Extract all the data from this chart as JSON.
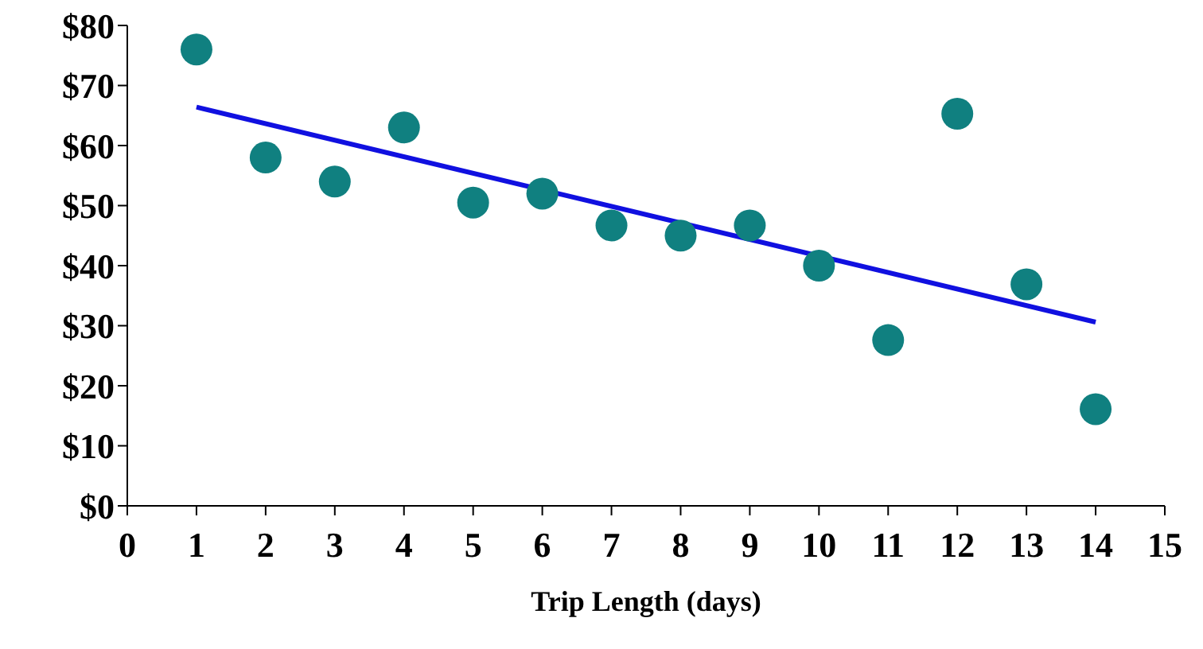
{
  "chart_data": {
    "type": "scatter",
    "xlabel": "Trip Length (days)",
    "grid": false,
    "legend": false,
    "x": [
      1,
      2,
      3,
      4,
      5,
      6,
      7,
      8,
      9,
      10,
      11,
      12,
      13,
      14
    ],
    "series": [
      {
        "marker": "circle",
        "color": "#108080",
        "values": [
          76,
          58,
          54,
          63,
          50.5,
          52,
          46.7,
          45,
          46.7,
          40,
          27.6,
          65.3,
          36.9,
          16.1
        ]
      },
      {
        "type": "line",
        "color": "#1010e0",
        "x": [
          1,
          14
        ],
        "values": [
          66.4,
          30.6
        ]
      }
    ],
    "xlim": [
      0,
      15
    ],
    "xticks": [
      0,
      1,
      2,
      3,
      4,
      5,
      6,
      7,
      8,
      9,
      10,
      11,
      12,
      13,
      14,
      15
    ],
    "ylim": [
      0,
      80
    ],
    "yticks": [
      {
        "value": 0,
        "label": "$0"
      },
      {
        "value": 10,
        "label": "$10"
      },
      {
        "value": 20,
        "label": "$20"
      },
      {
        "value": 30,
        "label": "$30"
      },
      {
        "value": 40,
        "label": "$40"
      },
      {
        "value": 50,
        "label": "$50"
      },
      {
        "value": 60,
        "label": "$60"
      },
      {
        "value": 70,
        "label": "$70"
      },
      {
        "value": 80,
        "label": "$80"
      }
    ]
  }
}
